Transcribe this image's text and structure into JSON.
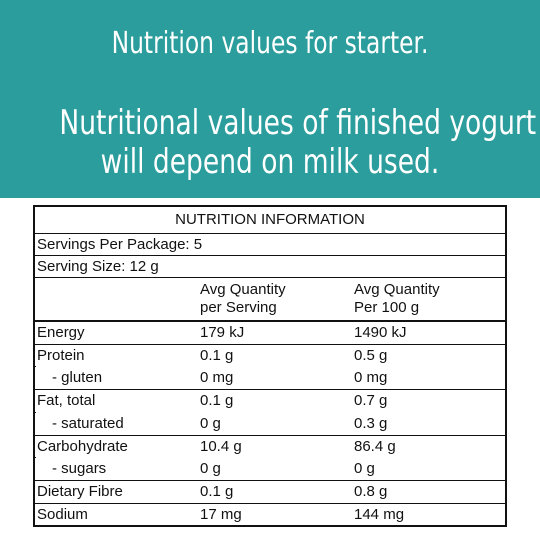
{
  "banner": {
    "line1": "Nutrition values for starter.",
    "line2": "Nutritional values of finished yogurt",
    "line3": "will depend on milk used."
  },
  "panel": {
    "title": "NUTRITION INFORMATION",
    "servings_per_package": "Servings Per Package: 5",
    "serving_size": "Serving Size: 12 g",
    "col_serving_line1": "Avg Quantity",
    "col_serving_line2": "per Serving",
    "col_100g_line1": "Avg Quantity",
    "col_100g_line2": "Per 100 g",
    "rows": [
      {
        "label": "Energy",
        "serving": "179 kJ",
        "per100": "1490 kJ"
      },
      {
        "label": "Protein",
        "serving": "0.1 g",
        "per100": "0.5 g"
      },
      {
        "label": "  - gluten",
        "serving": "0 mg",
        "per100": "0 mg"
      },
      {
        "label": "Fat, total",
        "serving": "0.1 g",
        "per100": "0.7 g"
      },
      {
        "label": "  - saturated",
        "serving": "0 g",
        "per100": "0.3 g"
      },
      {
        "label": "Carbohydrate",
        "serving": "10.4 g",
        "per100": "86.4 g"
      },
      {
        "label": "  - sugars",
        "serving": "0 g",
        "per100": "0 g"
      },
      {
        "label": "Dietary Fibre",
        "serving": "0.1 g",
        "per100": "0.8 g"
      },
      {
        "label": "Sodium",
        "serving": "17 mg",
        "per100": "144 mg"
      }
    ]
  }
}
